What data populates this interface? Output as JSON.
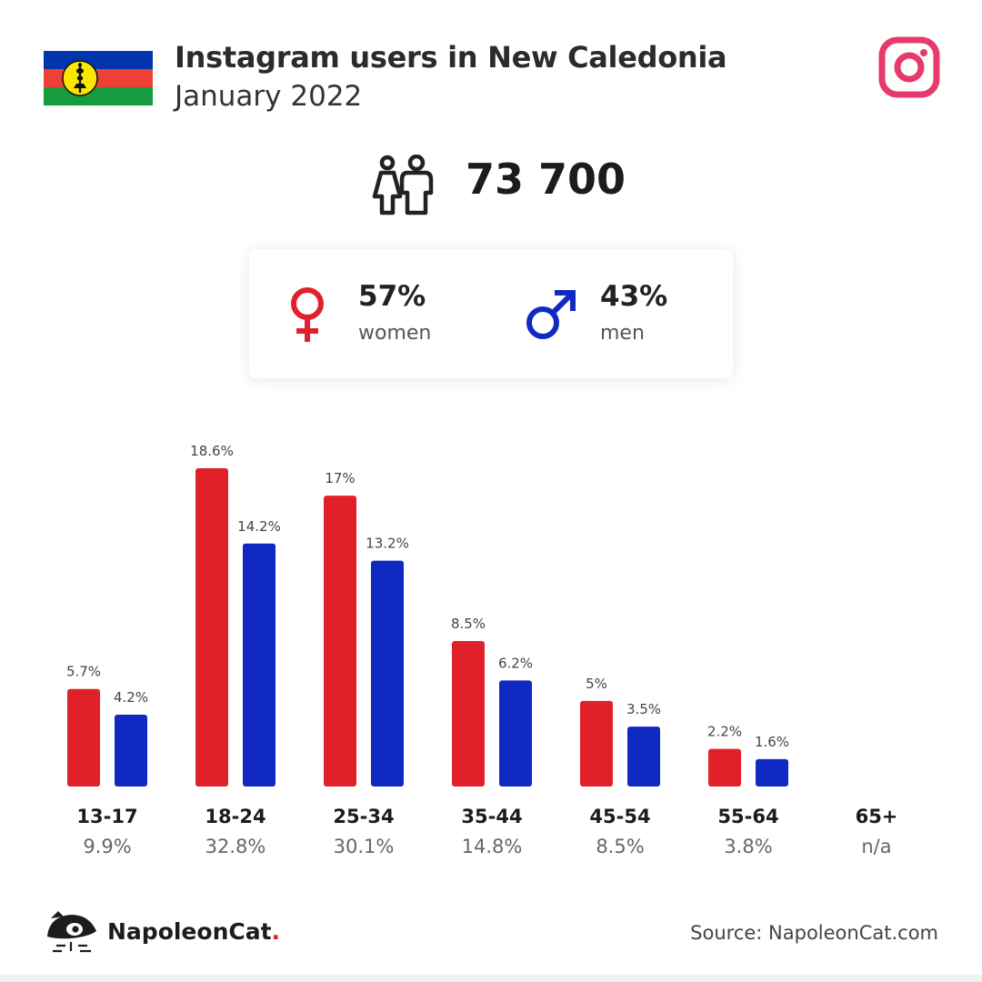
{
  "header": {
    "title": "Instagram users in New Caledonia",
    "subtitle": "January 2022"
  },
  "icons": {
    "flag": "new-caledonia-flag-icon",
    "brand": "instagram-logo-icon",
    "users": "people-icon",
    "women": "female-symbol-icon",
    "men": "male-symbol-icon",
    "logo": "napoleoncat-logo-icon"
  },
  "total": {
    "value": "73 700"
  },
  "gender": {
    "women": {
      "pct": "57%",
      "label": "women",
      "color": "#e0212a"
    },
    "men": {
      "pct": "43%",
      "label": "men",
      "color": "#1029c2"
    }
  },
  "colors": {
    "women": "#e0212a",
    "men": "#1029c2",
    "instagram": "#e53a6b",
    "flag_blue": "#0035ad",
    "flag_red": "#ed4135",
    "flag_green": "#169b3e",
    "flag_yellow": "#fae600"
  },
  "chart_data": {
    "type": "bar",
    "categories": [
      "13-17",
      "18-24",
      "25-34",
      "35-44",
      "45-54",
      "55-64",
      "65+"
    ],
    "category_totals": [
      "9.9%",
      "32.8%",
      "30.1%",
      "14.8%",
      "8.5%",
      "3.8%",
      "n/a"
    ],
    "series": [
      {
        "name": "women",
        "values": [
          5.7,
          18.6,
          17,
          8.5,
          5,
          2.2,
          null
        ],
        "labels": [
          "5.7%",
          "18.6%",
          "17%",
          "8.5%",
          "5%",
          "2.2%",
          ""
        ]
      },
      {
        "name": "men",
        "values": [
          4.2,
          14.2,
          13.2,
          6.2,
          3.5,
          1.6,
          null
        ],
        "labels": [
          "4.2%",
          "14.2%",
          "13.2%",
          "6.2%",
          "3.5%",
          "1.6%",
          ""
        ]
      }
    ],
    "ylim": [
      0,
      18.6
    ],
    "grid": false
  },
  "footer": {
    "brand_name": "NapoleonCat",
    "brand_dot": ".",
    "source": "Source: NapoleonCat.com"
  }
}
